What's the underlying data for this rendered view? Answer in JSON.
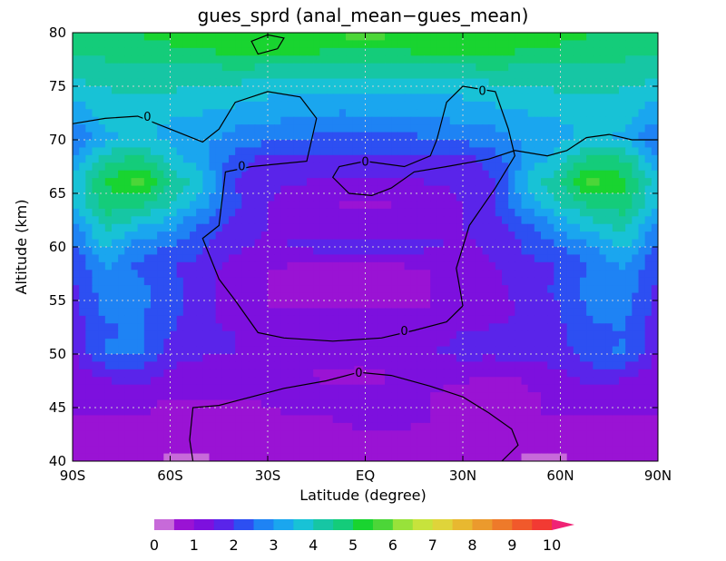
{
  "chart_data": {
    "type": "heatmap",
    "title": "gues_sprd (anal_mean−gues_mean)",
    "xlabel": "Latitude (degree)",
    "ylabel": "Altitude (km)",
    "xlim": [
      -90,
      90
    ],
    "ylim": [
      40,
      80
    ],
    "x_ticks": [
      {
        "value": -90,
        "label": "90S"
      },
      {
        "value": -60,
        "label": "60S"
      },
      {
        "value": -30,
        "label": "30S"
      },
      {
        "value": 0,
        "label": "EQ"
      },
      {
        "value": 30,
        "label": "30N"
      },
      {
        "value": 60,
        "label": "60N"
      },
      {
        "value": 90,
        "label": "90N"
      }
    ],
    "y_ticks": [
      40,
      45,
      50,
      55,
      60,
      65,
      70,
      75,
      80
    ],
    "grid": "dotted",
    "colorbar": {
      "position": "bottom",
      "colors": [
        "#c76ad9",
        "#9a13d4",
        "#7d10de",
        "#5a24ea",
        "#2d4ff2",
        "#1e83f4",
        "#1aa6ef",
        "#18c2d6",
        "#16c6a4",
        "#14cc7a",
        "#19d430",
        "#4cd638",
        "#98e23a",
        "#c7e33c",
        "#dfd43a",
        "#e8b830",
        "#eb9a2d",
        "#ee7a2a",
        "#f1592b",
        "#f23a33",
        "#f02375"
      ],
      "ticks": [
        0,
        1,
        2,
        3,
        4,
        5,
        6,
        7,
        8,
        9,
        10
      ],
      "step": 0.5,
      "max_arrow": true
    },
    "field": {
      "lat": [
        -90,
        -80,
        -70,
        -60,
        -50,
        -40,
        -30,
        -20,
        -10,
        0,
        10,
        20,
        30,
        40,
        50,
        60,
        70,
        80,
        90
      ],
      "alt": [
        40,
        42,
        44,
        46,
        48,
        50,
        52,
        54,
        56,
        58,
        60,
        62,
        64,
        66,
        68,
        70,
        72,
        74,
        76,
        78,
        80
      ],
      "values": [
        [
          0.9,
          0.8,
          0.7,
          0.4,
          0.4,
          0.6,
          0.8,
          0.8,
          0.8,
          0.8,
          0.8,
          0.8,
          0.7,
          0.6,
          0.4,
          0.4,
          0.7,
          0.8,
          0.9
        ],
        [
          0.9,
          0.9,
          0.9,
          0.8,
          0.7,
          0.8,
          0.9,
          0.9,
          0.9,
          0.9,
          0.9,
          0.9,
          0.8,
          0.8,
          0.8,
          0.8,
          0.9,
          0.9,
          0.9
        ],
        [
          1.0,
          1.0,
          1.0,
          0.9,
          0.8,
          0.6,
          0.9,
          1.0,
          1.0,
          1.1,
          1.1,
          1.0,
          0.6,
          0.9,
          1.0,
          1.0,
          1.0,
          1.0,
          1.0
        ],
        [
          1.0,
          1.1,
          1.1,
          1.0,
          1.0,
          1.0,
          1.1,
          1.2,
          1.2,
          1.1,
          1.1,
          1.0,
          0.8,
          0.5,
          0.9,
          1.1,
          1.1,
          1.1,
          1.0
        ],
        [
          1.2,
          1.6,
          1.8,
          1.4,
          1.0,
          1.0,
          1.0,
          1.0,
          0.9,
          0.9,
          1.0,
          1.1,
          1.1,
          1.0,
          1.1,
          1.4,
          1.8,
          1.6,
          1.2
        ],
        [
          1.4,
          2.6,
          2.6,
          1.8,
          1.6,
          1.5,
          1.5,
          1.4,
          1.3,
          1.3,
          1.4,
          1.5,
          1.6,
          1.6,
          1.7,
          1.8,
          2.3,
          2.6,
          1.4
        ],
        [
          1.6,
          2.4,
          2.6,
          2.0,
          1.6,
          1.5,
          1.4,
          1.3,
          1.3,
          1.3,
          1.3,
          1.4,
          1.5,
          1.6,
          1.6,
          1.9,
          2.4,
          2.5,
          1.6
        ],
        [
          1.8,
          2.6,
          2.6,
          2.2,
          1.6,
          1.3,
          1.0,
          1.0,
          1.0,
          1.0,
          1.0,
          1.0,
          1.1,
          1.3,
          1.6,
          2.0,
          2.6,
          2.6,
          1.8
        ],
        [
          1.9,
          2.8,
          2.7,
          2.2,
          1.7,
          1.2,
          1.0,
          0.9,
          0.9,
          0.9,
          0.9,
          1.0,
          1.2,
          1.3,
          1.8,
          2.1,
          2.8,
          2.8,
          1.9
        ],
        [
          2.0,
          3.0,
          2.4,
          2.0,
          1.8,
          1.2,
          1.0,
          0.9,
          0.9,
          0.9,
          0.9,
          1.0,
          1.2,
          1.5,
          1.8,
          2.0,
          2.6,
          3.0,
          2.0
        ],
        [
          2.3,
          3.6,
          2.7,
          2.5,
          2.1,
          1.6,
          1.4,
          1.6,
          1.7,
          1.7,
          1.7,
          1.6,
          1.4,
          1.6,
          2.1,
          2.4,
          3.0,
          3.6,
          2.3
        ],
        [
          2.8,
          4.2,
          3.6,
          3.2,
          2.4,
          1.8,
          1.5,
          1.4,
          1.3,
          1.3,
          1.3,
          1.4,
          1.5,
          1.8,
          2.4,
          3.2,
          3.8,
          4.2,
          2.8
        ],
        [
          3.5,
          4.8,
          4.6,
          4.0,
          3.2,
          2.1,
          1.5,
          1.1,
          1.0,
          0.9,
          1.0,
          1.1,
          1.5,
          2.0,
          3.2,
          4.0,
          4.6,
          4.8,
          3.5
        ],
        [
          3.6,
          5.0,
          5.7,
          4.5,
          3.6,
          2.0,
          1.6,
          1.5,
          1.4,
          1.4,
          1.4,
          1.5,
          1.6,
          2.0,
          3.6,
          4.5,
          5.7,
          5.1,
          3.6
        ],
        [
          3.0,
          4.4,
          4.8,
          3.8,
          3.2,
          2.2,
          1.8,
          1.9,
          1.9,
          1.9,
          1.9,
          1.9,
          1.8,
          2.2,
          3.2,
          3.8,
          4.8,
          4.6,
          3.0
        ],
        [
          2.4,
          3.4,
          3.6,
          3.4,
          3.1,
          2.8,
          2.6,
          2.4,
          2.4,
          2.4,
          2.4,
          2.4,
          2.6,
          2.8,
          3.1,
          3.4,
          3.6,
          3.4,
          2.4
        ],
        [
          3.0,
          3.6,
          3.6,
          3.5,
          3.4,
          3.2,
          3.1,
          3.0,
          2.9,
          2.9,
          2.9,
          3.0,
          3.1,
          3.2,
          3.4,
          3.5,
          3.6,
          3.6,
          3.0
        ],
        [
          3.6,
          3.9,
          3.9,
          3.9,
          3.8,
          3.7,
          3.5,
          3.4,
          3.3,
          3.3,
          3.3,
          3.4,
          3.5,
          3.7,
          3.8,
          3.9,
          3.9,
          3.9,
          3.6
        ],
        [
          4.1,
          4.2,
          4.3,
          4.3,
          4.2,
          4.2,
          4.1,
          4.0,
          4.0,
          4.0,
          4.0,
          4.0,
          4.1,
          4.2,
          4.2,
          4.3,
          4.3,
          4.2,
          4.1
        ],
        [
          4.5,
          4.6,
          4.7,
          4.8,
          4.9,
          5.0,
          5.1,
          5.0,
          4.9,
          4.9,
          4.9,
          5.0,
          5.1,
          5.0,
          4.9,
          4.8,
          4.7,
          4.6,
          4.5
        ],
        [
          4.8,
          4.9,
          5.0,
          5.2,
          5.4,
          5.5,
          5.3,
          5.4,
          5.6,
          5.7,
          5.6,
          5.4,
          5.3,
          5.5,
          5.4,
          5.2,
          5.0,
          4.9,
          4.8
        ]
      ]
    },
    "contour_labels": [
      {
        "lat": -67,
        "alt": 72.2,
        "text": "0"
      },
      {
        "lat": -38,
        "alt": 67.6,
        "text": "0"
      },
      {
        "lat": 0,
        "alt": 68.0,
        "text": "0"
      },
      {
        "lat": 36,
        "alt": 74.6,
        "text": "0"
      },
      {
        "lat": 12,
        "alt": 52.2,
        "text": "0"
      },
      {
        "lat": -2,
        "alt": 48.3,
        "text": "0"
      }
    ],
    "zero_contours": [
      [
        [
          -90,
          71.5
        ],
        [
          -80,
          72.0
        ],
        [
          -70,
          72.2
        ],
        [
          -60,
          71.0
        ],
        [
          -50,
          69.8
        ],
        [
          -45,
          71.0
        ],
        [
          -40,
          73.5
        ],
        [
          -30,
          74.5
        ],
        [
          -20,
          74.0
        ],
        [
          -15,
          72.0
        ],
        [
          -18,
          68.0
        ],
        [
          -25,
          67.8
        ],
        [
          -35,
          67.5
        ],
        [
          -43,
          67.0
        ],
        [
          -45,
          62.0
        ],
        [
          -50,
          60.8
        ],
        [
          -45,
          57.0
        ],
        [
          -40,
          55.0
        ],
        [
          -33,
          52.0
        ],
        [
          -25,
          51.5
        ],
        [
          -10,
          51.2
        ],
        [
          5,
          51.5
        ],
        [
          15,
          52.2
        ],
        [
          25,
          53.0
        ],
        [
          30,
          54.5
        ],
        [
          28,
          58.0
        ],
        [
          32,
          62.0
        ],
        [
          40,
          65.5
        ],
        [
          46,
          68.5
        ],
        [
          44,
          71.0
        ],
        [
          40,
          74.5
        ],
        [
          30,
          75.0
        ],
        [
          25,
          73.5
        ],
        [
          22,
          70.0
        ],
        [
          20,
          68.5
        ],
        [
          12,
          67.5
        ],
        [
          0,
          68.0
        ],
        [
          -8,
          67.5
        ],
        [
          -10,
          66.5
        ],
        [
          -5,
          65.0
        ],
        [
          2,
          64.8
        ],
        [
          8,
          65.5
        ],
        [
          15,
          67.0
        ],
        [
          25,
          67.5
        ],
        [
          38,
          68.2
        ],
        [
          46,
          69.0
        ],
        [
          56,
          68.5
        ],
        [
          62,
          69.0
        ],
        [
          68,
          70.2
        ],
        [
          75,
          70.5
        ],
        [
          82,
          70.0
        ],
        [
          90,
          70.0
        ]
      ],
      [
        [
          -53,
          40.0
        ],
        [
          -54,
          42.0
        ],
        [
          -53,
          45.0
        ],
        [
          -45,
          45.2
        ],
        [
          -35,
          46.0
        ],
        [
          -25,
          46.8
        ],
        [
          -12,
          47.5
        ],
        [
          -2,
          48.3
        ],
        [
          8,
          48.0
        ],
        [
          20,
          47.0
        ],
        [
          30,
          46.0
        ],
        [
          38,
          44.5
        ],
        [
          45,
          43.0
        ],
        [
          47,
          41.5
        ],
        [
          42,
          40.0
        ]
      ],
      [
        [
          -27,
          78.5
        ],
        [
          -25,
          79.5
        ],
        [
          -30,
          79.8
        ],
        [
          -35,
          79.2
        ],
        [
          -33,
          78.0
        ],
        [
          -27,
          78.5
        ]
      ]
    ]
  }
}
